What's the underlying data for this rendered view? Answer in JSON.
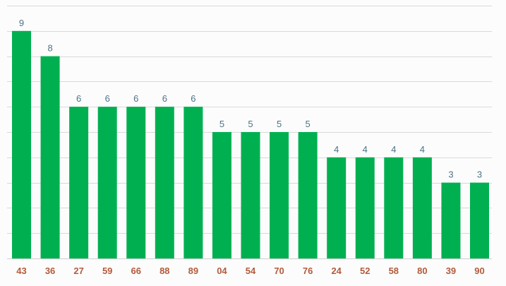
{
  "chart_data": {
    "type": "bar",
    "categories": [
      "43",
      "36",
      "27",
      "59",
      "66",
      "88",
      "89",
      "04",
      "54",
      "70",
      "76",
      "24",
      "52",
      "58",
      "80",
      "39",
      "90"
    ],
    "values": [
      9,
      8,
      6,
      6,
      6,
      6,
      6,
      5,
      5,
      5,
      5,
      4,
      4,
      4,
      4,
      3,
      3
    ],
    "title": "",
    "xlabel": "",
    "ylabel": "",
    "ylim": [
      0,
      10
    ],
    "grid": true,
    "legend": "none",
    "colors": {
      "bar": "#00b050",
      "value_label": "#4f7386",
      "category_label": "#b35b3b",
      "grid": "#d9d9d9"
    }
  }
}
